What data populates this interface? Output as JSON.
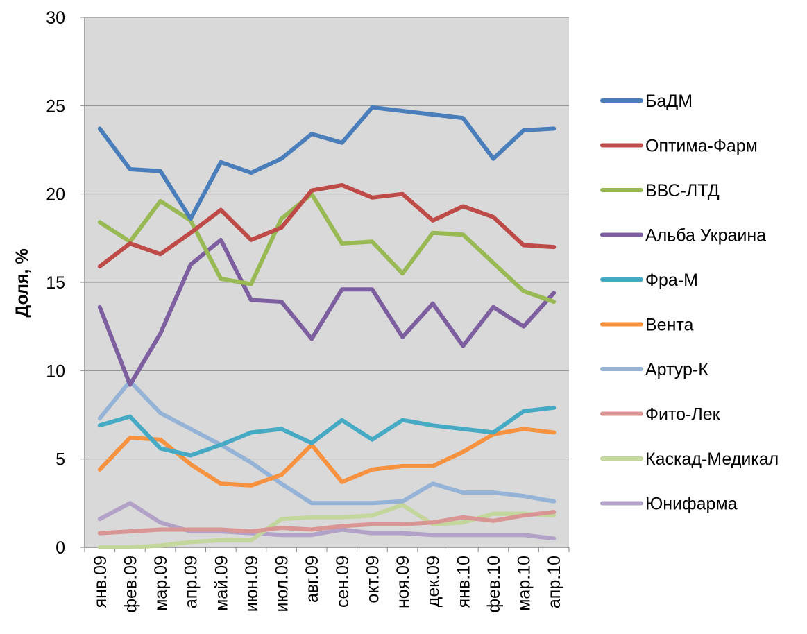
{
  "chart_data": {
    "type": "line",
    "title": "",
    "xlabel": "",
    "ylabel": "Доля, %",
    "ylim": [
      0,
      30
    ],
    "yticks": [
      0,
      5,
      10,
      15,
      20,
      25,
      30
    ],
    "grid": "horizontal",
    "legend_position": "right",
    "plot_background": "#d9d9d9",
    "categories": [
      "янв.09",
      "фев.09",
      "мар.09",
      "апр.09",
      "май.09",
      "июн.09",
      "июл.09",
      "авг.09",
      "сен.09",
      "окт.09",
      "ноя.09",
      "дек.09",
      "янв.10",
      "фев.10",
      "мар.10",
      "апр.10"
    ],
    "series": [
      {
        "name": "БаДМ",
        "color": "#4a7ebb",
        "values": [
          23.7,
          21.4,
          21.3,
          18.6,
          21.8,
          21.2,
          22.0,
          23.4,
          22.9,
          24.9,
          24.7,
          24.5,
          24.3,
          22.0,
          23.6,
          23.7
        ]
      },
      {
        "name": "Оптима-Фарм",
        "color": "#be4b48",
        "values": [
          15.9,
          17.2,
          16.6,
          17.8,
          19.1,
          17.4,
          18.1,
          20.2,
          20.5,
          19.8,
          20.0,
          18.5,
          19.3,
          18.7,
          17.1,
          17.0
        ]
      },
      {
        "name": "ВВС-ЛТД",
        "color": "#98b954",
        "values": [
          18.4,
          17.3,
          19.6,
          18.5,
          15.2,
          14.9,
          18.6,
          20.0,
          17.2,
          17.3,
          15.5,
          17.8,
          17.7,
          16.1,
          14.5,
          13.9
        ]
      },
      {
        "name": "Альба Украина",
        "color": "#7d5fa0",
        "values": [
          13.6,
          9.2,
          12.1,
          16.0,
          17.4,
          14.0,
          13.9,
          11.8,
          14.6,
          14.6,
          11.9,
          13.8,
          11.4,
          13.6,
          12.5,
          14.4
        ]
      },
      {
        "name": "Фра-М",
        "color": "#46aac5",
        "values": [
          6.9,
          7.4,
          5.6,
          5.2,
          5.8,
          6.5,
          6.7,
          5.9,
          7.2,
          6.1,
          7.2,
          6.9,
          6.7,
          6.5,
          7.7,
          7.9
        ]
      },
      {
        "name": "Вента",
        "color": "#f69240",
        "values": [
          4.4,
          6.2,
          6.1,
          4.7,
          3.6,
          3.5,
          4.1,
          5.8,
          3.7,
          4.4,
          4.6,
          4.6,
          5.4,
          6.4,
          6.7,
          6.5
        ]
      },
      {
        "name": "Артур-К",
        "color": "#95b3d7",
        "values": [
          7.3,
          9.4,
          7.6,
          6.7,
          5.8,
          4.8,
          3.6,
          2.5,
          2.5,
          2.5,
          2.6,
          3.6,
          3.1,
          3.1,
          2.9,
          2.6
        ]
      },
      {
        "name": "Фито-Лек",
        "color": "#d99594",
        "values": [
          0.8,
          0.9,
          1.0,
          1.0,
          1.0,
          0.9,
          1.1,
          1.0,
          1.2,
          1.3,
          1.3,
          1.4,
          1.7,
          1.5,
          1.8,
          2.0
        ]
      },
      {
        "name": "Каскад-Медикал",
        "color": "#c3d69b",
        "values": [
          0.0,
          0.0,
          0.1,
          0.3,
          0.4,
          0.4,
          1.6,
          1.7,
          1.7,
          1.8,
          2.4,
          1.3,
          1.4,
          1.9,
          1.9,
          1.8
        ]
      },
      {
        "name": "Юнифарма",
        "color": "#b2a2c7",
        "values": [
          1.6,
          2.5,
          1.4,
          0.9,
          0.9,
          0.8,
          0.7,
          0.7,
          1.0,
          0.8,
          0.8,
          0.7,
          0.7,
          0.7,
          0.7,
          0.5
        ]
      }
    ]
  }
}
